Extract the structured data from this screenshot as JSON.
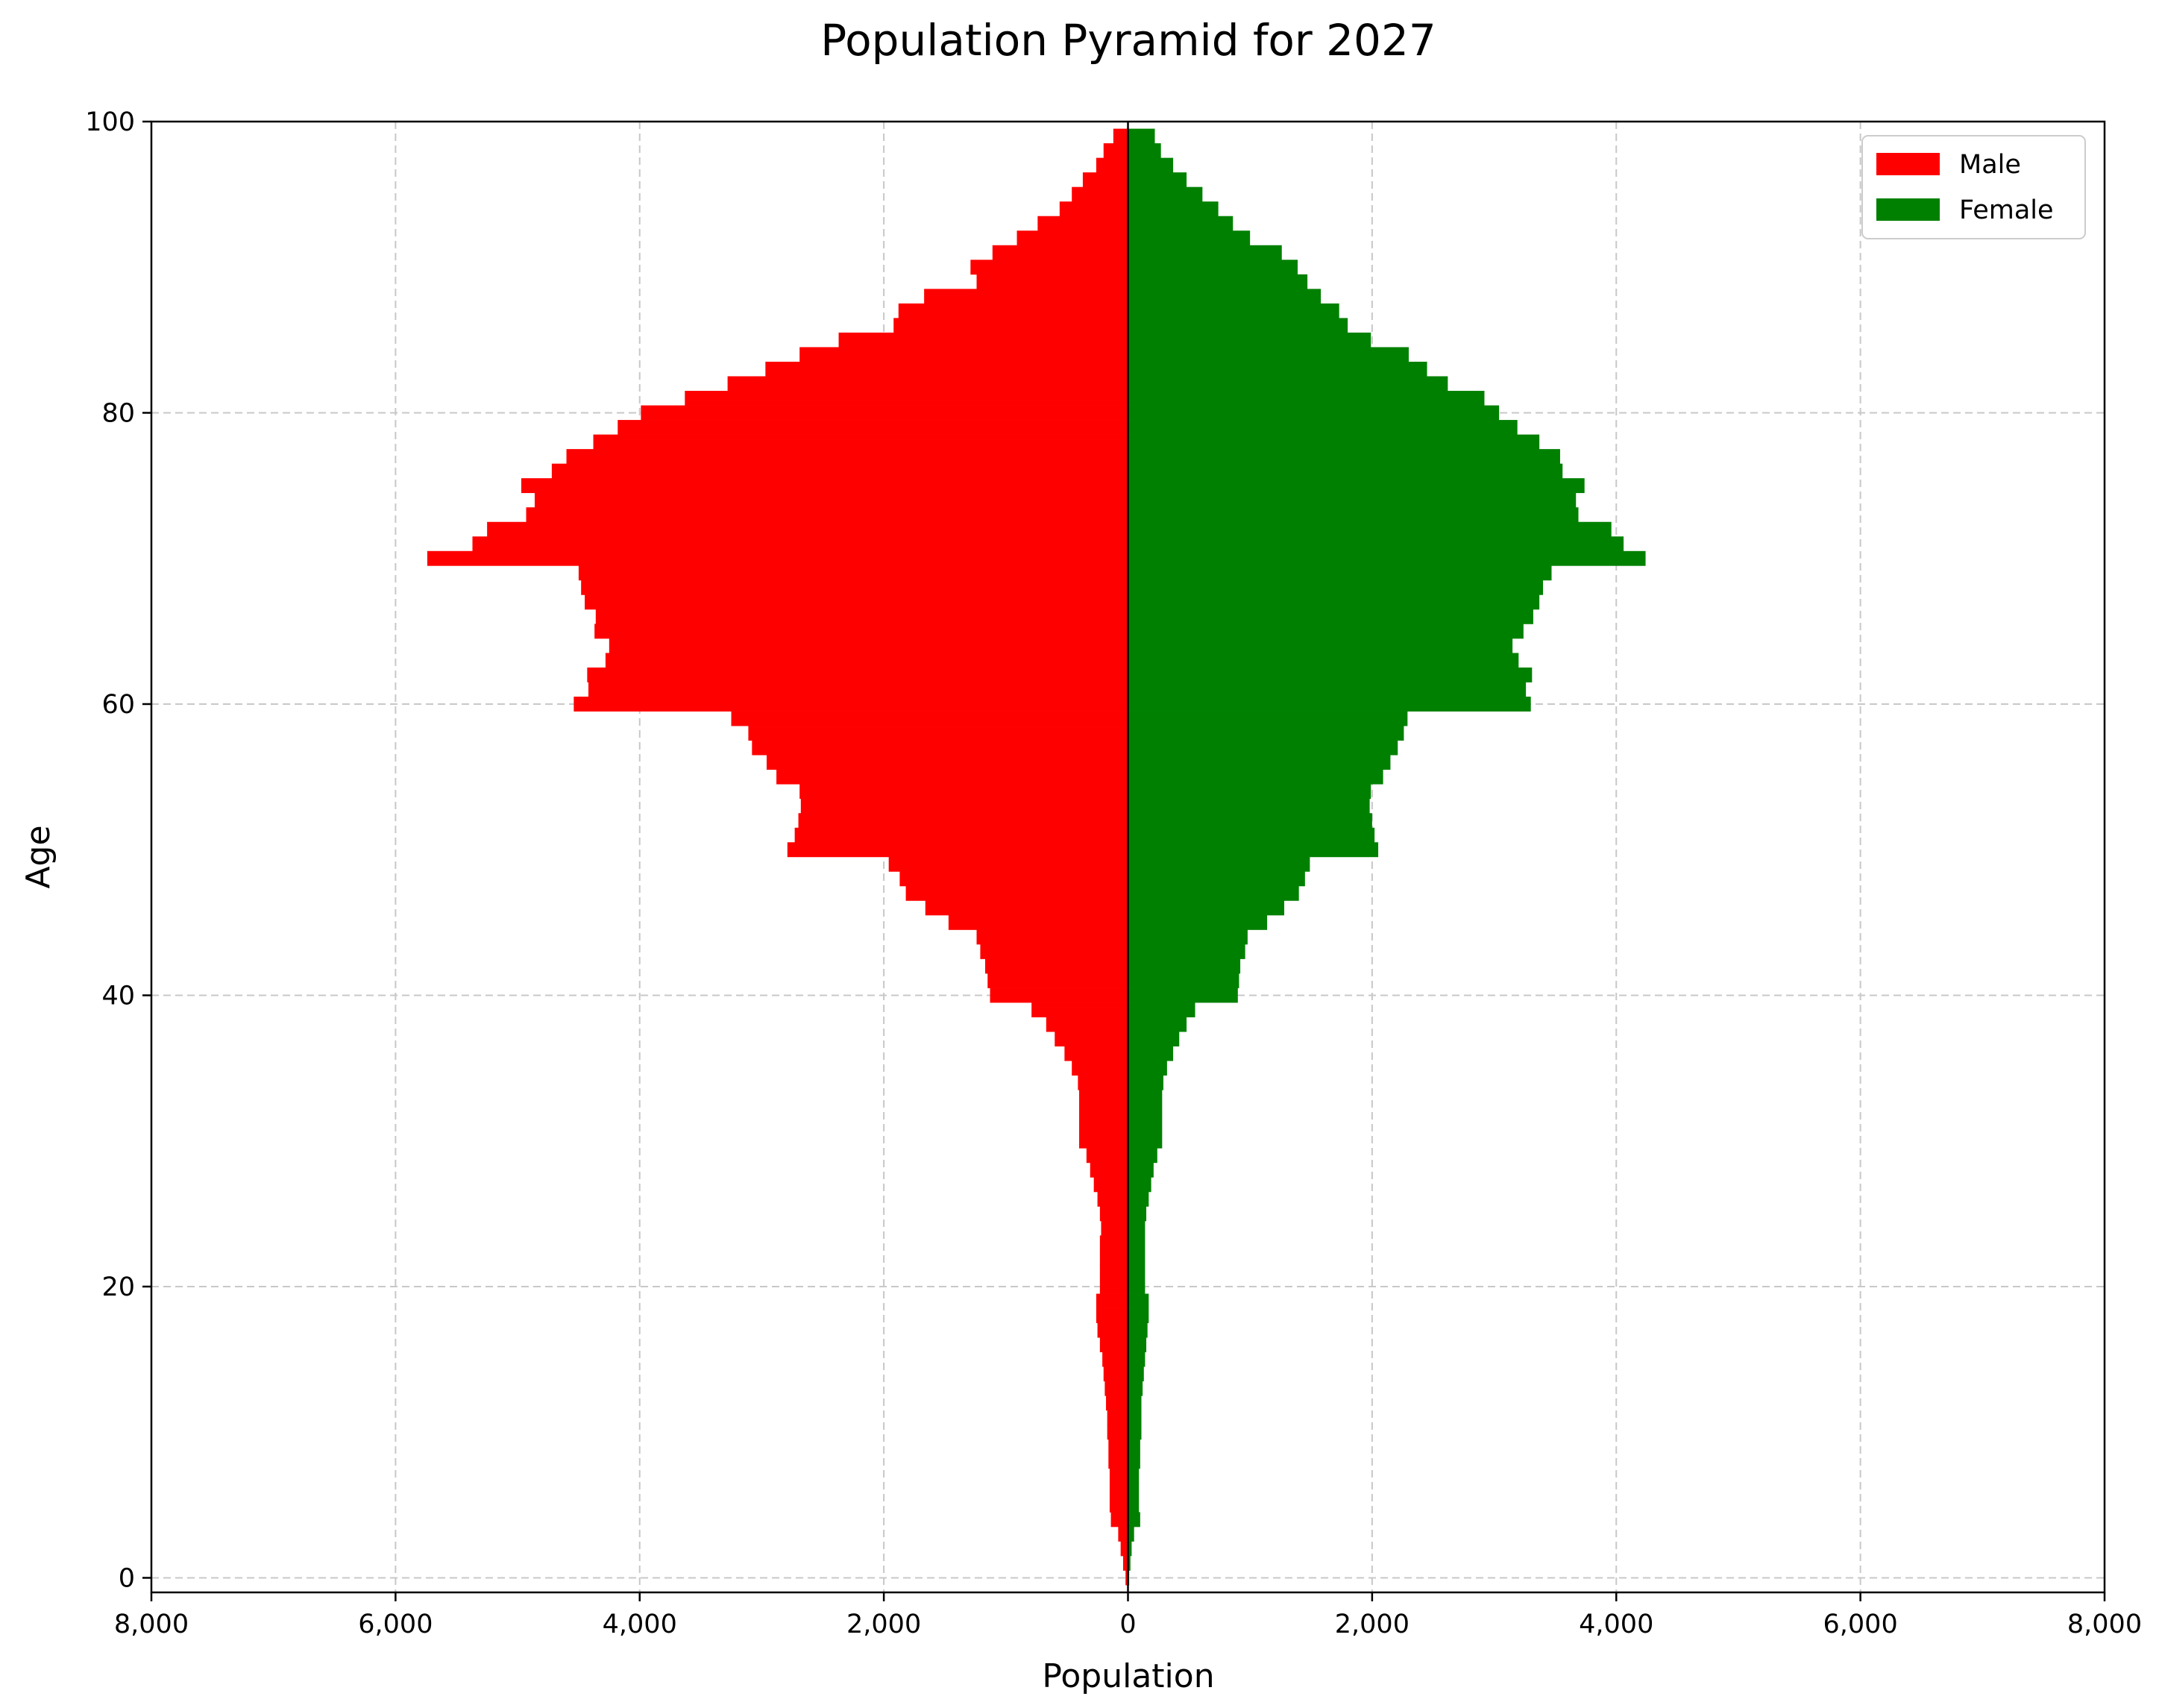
{
  "chart_data": {
    "type": "bar",
    "orientation": "horizontal",
    "title": "Population Pyramid for 2027",
    "xlabel": "Population",
    "ylabel": "Age",
    "xlim": [
      -8000,
      8000
    ],
    "ylim": [
      -1,
      100
    ],
    "x_ticks": [
      -8000,
      -6000,
      -4000,
      -2000,
      0,
      2000,
      4000,
      6000,
      8000
    ],
    "x_tick_labels": [
      "8,000",
      "6,000",
      "4,000",
      "2,000",
      "0",
      "2,000",
      "4,000",
      "6,000",
      "8,000"
    ],
    "y_ticks": [
      0,
      20,
      40,
      60,
      80,
      100
    ],
    "y_tick_labels": [
      "0",
      "20",
      "40",
      "60",
      "80",
      "100"
    ],
    "grid": true,
    "legend_position": "top-right",
    "ages": [
      0,
      1,
      2,
      3,
      4,
      5,
      6,
      7,
      8,
      9,
      10,
      11,
      12,
      13,
      14,
      15,
      16,
      17,
      18,
      19,
      20,
      21,
      22,
      23,
      24,
      25,
      26,
      27,
      28,
      29,
      30,
      31,
      32,
      33,
      34,
      35,
      36,
      37,
      38,
      39,
      40,
      41,
      42,
      43,
      44,
      45,
      46,
      47,
      48,
      49,
      50,
      51,
      52,
      53,
      54,
      55,
      56,
      57,
      58,
      59,
      60,
      61,
      62,
      63,
      64,
      65,
      66,
      67,
      68,
      69,
      70,
      71,
      72,
      73,
      74,
      75,
      76,
      77,
      78,
      79,
      80,
      81,
      82,
      83,
      84,
      85,
      86,
      87,
      88,
      89,
      90,
      91,
      92,
      93,
      94,
      95,
      96,
      97,
      98,
      99
    ],
    "series": [
      {
        "name": "Male",
        "color": "#ff0000",
        "values": [
          20,
          40,
          60,
          80,
          140,
          150,
          150,
          150,
          160,
          160,
          170,
          170,
          180,
          190,
          200,
          210,
          230,
          250,
          260,
          260,
          230,
          230,
          230,
          230,
          220,
          230,
          250,
          280,
          310,
          340,
          400,
          400,
          400,
          400,
          410,
          460,
          520,
          600,
          670,
          790,
          1130,
          1150,
          1170,
          1210,
          1240,
          1470,
          1660,
          1820,
          1870,
          1960,
          2790,
          2730,
          2700,
          2680,
          2690,
          2880,
          2960,
          3080,
          3110,
          3250,
          4540,
          4420,
          4430,
          4280,
          4250,
          4370,
          4360,
          4450,
          4480,
          4500,
          5740,
          5370,
          5250,
          4930,
          4860,
          4970,
          4720,
          4600,
          4380,
          4180,
          3990,
          3630,
          3280,
          2970,
          2690,
          2370,
          1920,
          1880,
          1670,
          1240,
          1290,
          1110,
          910,
          740,
          560,
          460,
          370,
          260,
          200,
          120
        ]
      },
      {
        "name": "Female",
        "color": "#008000",
        "values": [
          10,
          20,
          30,
          50,
          100,
          90,
          90,
          90,
          100,
          100,
          110,
          110,
          110,
          120,
          130,
          140,
          150,
          160,
          170,
          170,
          140,
          140,
          140,
          140,
          140,
          150,
          170,
          190,
          210,
          240,
          280,
          280,
          280,
          280,
          290,
          320,
          370,
          420,
          480,
          550,
          900,
          910,
          920,
          960,
          980,
          1140,
          1280,
          1400,
          1450,
          1490,
          2050,
          2020,
          2000,
          1980,
          1990,
          2090,
          2150,
          2210,
          2260,
          2290,
          3300,
          3260,
          3310,
          3200,
          3150,
          3240,
          3320,
          3370,
          3400,
          3470,
          4240,
          4060,
          3960,
          3690,
          3670,
          3740,
          3560,
          3540,
          3370,
          3190,
          3040,
          2920,
          2620,
          2450,
          2300,
          1990,
          1800,
          1730,
          1580,
          1470,
          1390,
          1260,
          1000,
          860,
          740,
          610,
          480,
          370,
          270,
          220
        ]
      }
    ]
  }
}
